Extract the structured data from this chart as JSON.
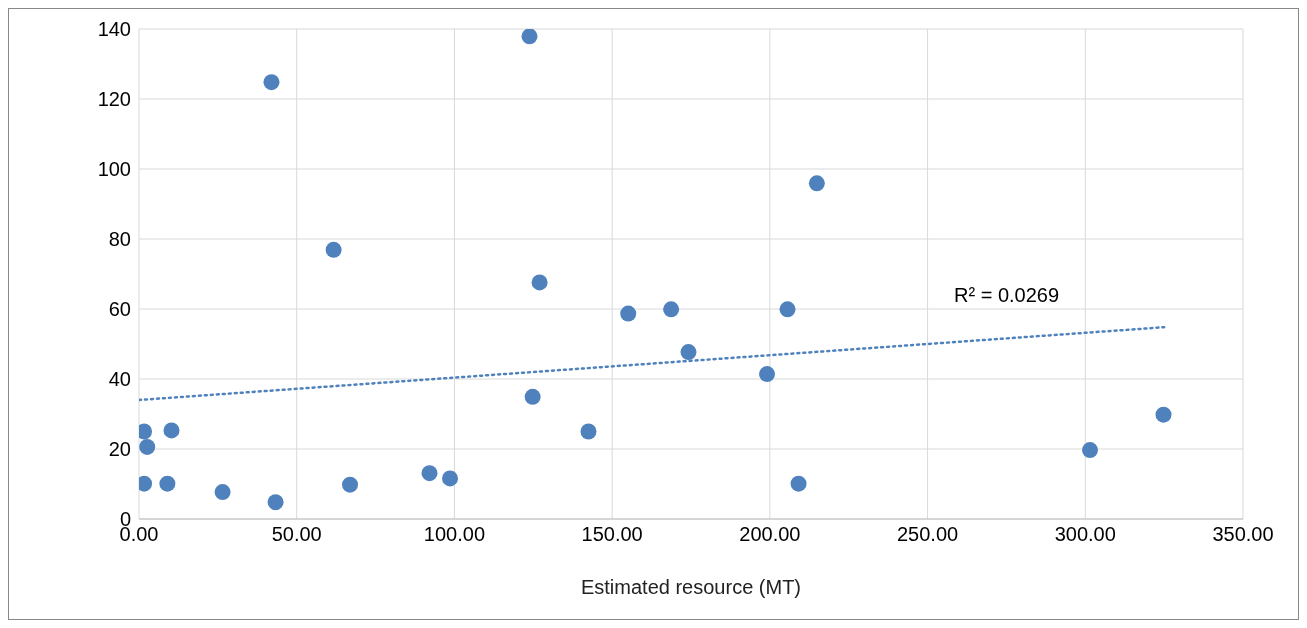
{
  "chart_data": {
    "type": "scatter",
    "xlabel": "Estimated resource (MT)",
    "xlim": [
      0,
      350
    ],
    "ylim": [
      0,
      140
    ],
    "xticks": [
      {
        "value": 0,
        "label": "0.00"
      },
      {
        "value": 50,
        "label": "50.00"
      },
      {
        "value": 100,
        "label": "100.00"
      },
      {
        "value": 150,
        "label": "150.00"
      },
      {
        "value": 200,
        "label": "200.00"
      },
      {
        "value": 250,
        "label": "250.00"
      },
      {
        "value": 300,
        "label": "300.00"
      },
      {
        "value": 350,
        "label": "350.00"
      }
    ],
    "yticks": [
      0,
      20,
      40,
      60,
      80,
      100,
      120,
      140
    ],
    "grid": true,
    "series": [
      {
        "color": "#4f81bd",
        "marker": "circle",
        "x": [
          1.6,
          1.6,
          2.6,
          9.0,
          10.3,
          26.5,
          42.0,
          43.3,
          61.7,
          66.9,
          92.1,
          98.6,
          123.8,
          124.8,
          127.0,
          142.5,
          155.1,
          168.7,
          174.2,
          199.1,
          205.6,
          209.1,
          214.9,
          301.5,
          324.8
        ],
        "values": [
          25,
          10.1,
          20.6,
          10.1,
          25.3,
          7.7,
          124.8,
          4.8,
          76.9,
          9.8,
          13.1,
          11.6,
          137.9,
          34.9,
          67.6,
          25.0,
          58.7,
          59.9,
          47.7,
          41.4,
          59.9,
          10.1,
          95.9,
          19.7,
          29.8
        ]
      },
      {
        "type": "line",
        "color": "#4f81bd",
        "line_style": "dotted",
        "x": [
          0,
          325
        ],
        "values": [
          34.0,
          54.8
        ]
      }
    ],
    "annotations": [
      "R² = 0.0269"
    ]
  }
}
